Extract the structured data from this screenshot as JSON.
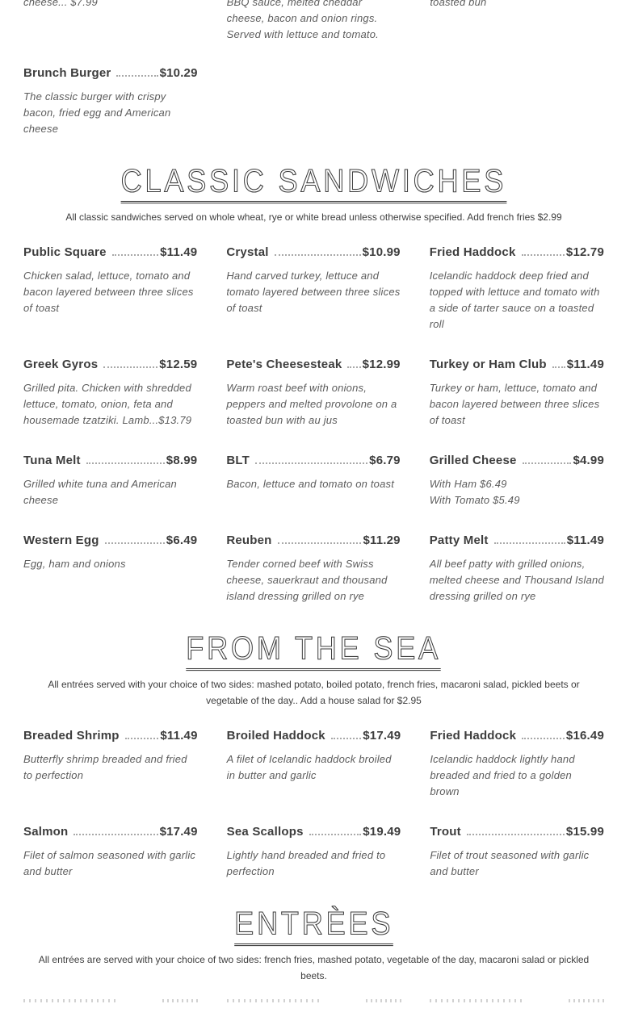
{
  "top_partial": {
    "items": [
      {
        "desc": "cheese... $7.99"
      },
      {
        "desc": "BBQ sauce, melted cheddar cheese, bacon and onion rings. Served with lettuce and tomato."
      },
      {
        "desc": "toasted bun"
      }
    ]
  },
  "featured_item": {
    "name": "Brunch Burger",
    "price": "$10.29",
    "desc": "The classic burger with crispy bacon, fried egg and American cheese"
  },
  "sections": [
    {
      "title": "CLASSIC SANDWICHES",
      "subtitle": "All classic sandwiches served on whole wheat, rye or white bread unless otherwise specified. Add french fries $2.99",
      "items": [
        {
          "name": "Public Square",
          "price": "$11.49",
          "desc": "Chicken salad, lettuce, tomato and bacon layered between three slices of toast"
        },
        {
          "name": "Crystal",
          "price": "$10.99",
          "desc": "Hand carved turkey, lettuce and tomato layered between three slices of toast"
        },
        {
          "name": "Fried Haddock",
          "price": "$12.79",
          "desc": "Icelandic haddock deep fried and topped with lettuce and tomato with a side of tarter sauce on a toasted roll"
        },
        {
          "name": "Greek Gyros",
          "price": "$12.59",
          "desc": "Grilled pita. Chicken with shredded lettuce, tomato, onion, feta and housemade tzatziki. Lamb...$13.79"
        },
        {
          "name": "Pete's Cheesesteak",
          "price": "$12.99",
          "desc": "Warm roast beef with onions, peppers and melted provolone on a toasted bun with au jus"
        },
        {
          "name": "Turkey or Ham Club",
          "price": "$11.49",
          "desc": "Turkey or ham, lettuce, tomato and bacon layered between three slices of toast"
        },
        {
          "name": "Tuna Melt",
          "price": "$8.99",
          "desc": "Grilled white tuna and American cheese"
        },
        {
          "name": "BLT",
          "price": "$6.79",
          "desc": "Bacon, lettuce and tomato on toast"
        },
        {
          "name": "Grilled Cheese",
          "price": "$4.99",
          "desc": "With Ham $6.49\nWith Tomato $5.49"
        },
        {
          "name": "Western Egg",
          "price": "$6.49",
          "desc": "Egg, ham and onions"
        },
        {
          "name": "Reuben",
          "price": "$11.29",
          "desc": "Tender corned beef with Swiss cheese, sauerkraut and thousand island dressing grilled on rye"
        },
        {
          "name": "Patty Melt",
          "price": "$11.49",
          "desc": "All beef patty with grilled onions, melted cheese and Thousand Island dressing grilled on rye"
        }
      ]
    },
    {
      "title": "FROM THE SEA",
      "subtitle": "All entrées served with your choice of two sides: mashed potato, boiled potato, french fries, macaroni salad, pickled beets or vegetable of the day.. Add a house salad for $2.95",
      "items": [
        {
          "name": "Breaded Shrimp",
          "price": "$11.49",
          "desc": "Butterfly shrimp breaded and fried to perfection"
        },
        {
          "name": "Broiled Haddock",
          "price": "$17.49",
          "desc": "A filet of Icelandic haddock broiled in butter and garlic"
        },
        {
          "name": "Fried Haddock",
          "price": "$16.49",
          "desc": "Icelandic haddock lightly hand breaded and fried to a golden brown"
        },
        {
          "name": "Salmon",
          "price": "$17.49",
          "desc": "Filet of salmon seasoned with garlic and butter"
        },
        {
          "name": "Sea Scallops",
          "price": "$19.49",
          "desc": "Lightly hand breaded and fried to perfection"
        },
        {
          "name": "Trout",
          "price": "$15.99",
          "desc": "Filet of trout seasoned with garlic and butter"
        }
      ]
    },
    {
      "title": "ENTRÈES",
      "subtitle": "All entrées are served with your choice of two sides: french fries, mashed potato, vegetable of the day, macaroni salad or pickled beets.",
      "items": []
    }
  ],
  "colors": {
    "title_text": "#3d3d3d",
    "description_text": "#5c5c5c",
    "header_text": "#3b3b3b",
    "leader_dots": "#a9a9a9",
    "background": "#ffffff"
  }
}
